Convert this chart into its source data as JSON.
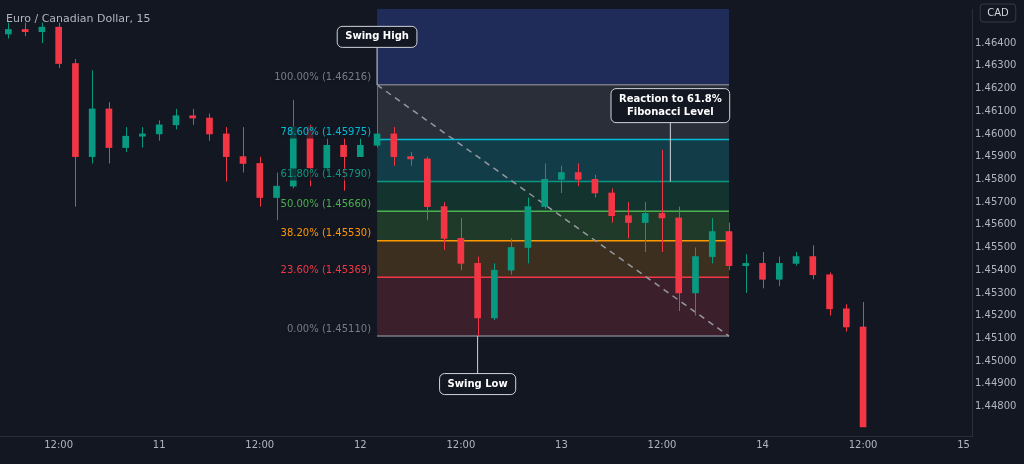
{
  "chart_data": {
    "type": "candlestick",
    "title": "Euro / Canadian Dollar, 15",
    "ylabel": "CAD",
    "categories": [
      null,
      null,
      null,
      "12:00",
      null,
      null,
      null,
      null,
      null,
      "11",
      null,
      null,
      null,
      null,
      null,
      "12:00",
      null,
      null,
      null,
      null,
      null,
      "12",
      null,
      null,
      null,
      null,
      null,
      "12:00",
      null,
      null,
      null,
      null,
      null,
      "13",
      null,
      null,
      null,
      null,
      null,
      "12:00",
      null,
      null,
      null,
      null,
      null,
      "14",
      null,
      null,
      null,
      null,
      null,
      "12:00",
      null,
      null,
      null,
      null,
      null,
      "15"
    ],
    "ohlc": [
      [
        1.4644,
        1.4649,
        1.4642,
        1.4646
      ],
      [
        1.4646,
        1.4649,
        1.4643,
        1.4645
      ],
      [
        1.4645,
        1.4649,
        1.464,
        1.4647
      ],
      [
        1.4647,
        1.4649,
        1.4629,
        1.4631
      ],
      [
        1.4631,
        1.4633,
        1.4568,
        1.459
      ],
      [
        1.459,
        1.4628,
        1.4587,
        1.4611
      ],
      [
        1.4611,
        1.4614,
        1.4587,
        1.4594
      ],
      [
        1.4594,
        1.4603,
        1.4592,
        1.4599
      ],
      [
        1.4599,
        1.4603,
        1.4594,
        1.46
      ],
      [
        1.46,
        1.4606,
        1.4597,
        1.4604
      ],
      [
        1.4604,
        1.4611,
        1.4602,
        1.4608
      ],
      [
        1.4608,
        1.4611,
        1.4604,
        1.4607
      ],
      [
        1.4607,
        1.4609,
        1.4597,
        1.46
      ],
      [
        1.46,
        1.4603,
        1.4579,
        1.459
      ],
      [
        1.459,
        1.4603,
        1.4583,
        1.4587
      ],
      [
        1.4587,
        1.459,
        1.4568,
        1.4572
      ],
      [
        1.4572,
        1.4583,
        1.4562,
        1.4577
      ],
      [
        1.4577,
        1.4615,
        1.4576,
        1.4603
      ],
      [
        1.4603,
        1.4604,
        1.4577,
        1.4585
      ],
      [
        1.4585,
        1.4598,
        1.4583,
        1.4595
      ],
      [
        1.4595,
        1.4598,
        1.4575,
        1.459
      ],
      [
        1.459,
        1.4598,
        1.459,
        1.4595
      ],
      [
        1.4595,
        1.46216,
        1.4594,
        1.46
      ],
      [
        1.46,
        1.4603,
        1.4586,
        1.459
      ],
      [
        1.459,
        1.4592,
        1.4586,
        1.4589
      ],
      [
        1.4589,
        1.459,
        1.4562,
        1.4568
      ],
      [
        1.4568,
        1.457,
        1.4549,
        1.4554
      ],
      [
        1.4554,
        1.4563,
        1.454,
        1.4543
      ],
      [
        1.4543,
        1.4546,
        1.4511,
        1.4519
      ],
      [
        1.4519,
        1.4543,
        1.4518,
        1.454
      ],
      [
        1.454,
        1.4554,
        1.4538,
        1.455
      ],
      [
        1.455,
        1.4572,
        1.4543,
        1.4568
      ],
      [
        1.4568,
        1.4587,
        1.4567,
        1.458
      ],
      [
        1.458,
        1.4586,
        1.4574,
        1.4583
      ],
      [
        1.4583,
        1.4587,
        1.4577,
        1.458
      ],
      [
        1.458,
        1.4582,
        1.4572,
        1.4574
      ],
      [
        1.4574,
        1.4576,
        1.4561,
        1.4564
      ],
      [
        1.4564,
        1.457,
        1.4554,
        1.4561
      ],
      [
        1.4561,
        1.457,
        1.4548,
        1.4565
      ],
      [
        1.4565,
        1.4593,
        1.4548,
        1.4563
      ],
      [
        1.4563,
        1.4568,
        1.4522,
        1.453
      ],
      [
        1.453,
        1.455,
        1.452,
        1.4546
      ],
      [
        1.4546,
        1.4563,
        1.4543,
        1.4557
      ],
      [
        1.4557,
        1.4561,
        1.454,
        1.4542
      ],
      [
        1.4542,
        1.4547,
        1.453,
        1.4543
      ],
      [
        1.4543,
        1.4548,
        1.4532,
        1.4536
      ],
      [
        1.4536,
        1.4546,
        1.4533,
        1.4543
      ],
      [
        1.4543,
        1.4548,
        1.4542,
        1.4546
      ],
      [
        1.4546,
        1.4551,
        1.4536,
        1.4538
      ],
      [
        1.4538,
        1.4539,
        1.452,
        1.4523
      ],
      [
        1.4523,
        1.4525,
        1.4513,
        1.4515
      ],
      [
        1.4515,
        1.4526,
        1.4471,
        1.4471
      ],
      null,
      null,
      null,
      null,
      null,
      null
    ],
    "colors": [
      "#089981",
      "#f23645",
      "#089981",
      "#f23645",
      "#f23645",
      "#089981",
      "#f23645",
      "#089981",
      "#089981",
      "#089981",
      "#089981",
      "#f23645",
      "#f23645",
      "#f23645",
      "#f23645",
      "#f23645",
      "#089981",
      "#089981",
      "#f23645",
      "#089981",
      "#f23645",
      "#089981",
      "#089981",
      "#f23645",
      "#f23645",
      "#f23645",
      "#f23645",
      "#f23645",
      "#f23645",
      "#089981",
      "#089981",
      "#089981",
      "#089981",
      "#089981",
      "#f23645",
      "#f23645",
      "#f23645",
      "#f23645",
      "#089981",
      "#f23645",
      "#f23645",
      "#089981",
      "#089981",
      "#f23645",
      "#089981",
      "#f23645",
      "#089981",
      "#089981",
      "#f23645",
      "#f23645",
      "#f23645",
      "#f23645",
      null,
      null,
      null,
      null,
      null,
      null
    ],
    "series": [
      {
        "type": "line",
        "color": "#9598a1",
        "line_style": "dashed",
        "values": [
          null,
          null,
          null,
          null,
          null,
          null,
          null,
          null,
          null,
          null,
          null,
          null,
          null,
          null,
          null,
          null,
          null,
          null,
          null,
          null,
          null,
          null,
          1.46216,
          null,
          null,
          null,
          null,
          null,
          null,
          null,
          null,
          null,
          null,
          null,
          null,
          null,
          null,
          null,
          null,
          null,
          null,
          null,
          null,
          1.4511,
          null,
          null,
          null,
          null,
          null,
          null,
          null,
          null,
          null,
          null,
          null,
          null,
          null,
          null
        ]
      },
      {
        "type": "line",
        "name": "100.00% (1.46216)",
        "color": "#787b86",
        "values": [
          null,
          null,
          null,
          null,
          null,
          null,
          null,
          null,
          null,
          null,
          null,
          null,
          null,
          null,
          null,
          null,
          null,
          null,
          null,
          null,
          null,
          null,
          1.46216,
          1.46216,
          1.46216,
          1.46216,
          1.46216,
          1.46216,
          1.46216,
          1.46216,
          1.46216,
          1.46216,
          1.46216,
          1.46216,
          1.46216,
          1.46216,
          1.46216,
          1.46216,
          1.46216,
          1.46216,
          1.46216,
          1.46216,
          1.46216,
          1.46216,
          null,
          null,
          null,
          null,
          null,
          null,
          null,
          null,
          null,
          null,
          null,
          null,
          null,
          null
        ]
      },
      {
        "type": "line",
        "name": "78.60% (1.45975)",
        "color": "#00bcd4",
        "values": [
          null,
          null,
          null,
          null,
          null,
          null,
          null,
          null,
          null,
          null,
          null,
          null,
          null,
          null,
          null,
          null,
          null,
          null,
          null,
          null,
          null,
          null,
          1.45975,
          1.45975,
          1.45975,
          1.45975,
          1.45975,
          1.45975,
          1.45975,
          1.45975,
          1.45975,
          1.45975,
          1.45975,
          1.45975,
          1.45975,
          1.45975,
          1.45975,
          1.45975,
          1.45975,
          1.45975,
          1.45975,
          1.45975,
          1.45975,
          1.45975,
          null,
          null,
          null,
          null,
          null,
          null,
          null,
          null,
          null,
          null,
          null,
          null,
          null,
          null
        ]
      },
      {
        "type": "line",
        "name": "61.80% (1.45790)",
        "color": "#089981",
        "values": [
          null,
          null,
          null,
          null,
          null,
          null,
          null,
          null,
          null,
          null,
          null,
          null,
          null,
          null,
          null,
          null,
          null,
          null,
          null,
          null,
          null,
          null,
          1.4579,
          1.4579,
          1.4579,
          1.4579,
          1.4579,
          1.4579,
          1.4579,
          1.4579,
          1.4579,
          1.4579,
          1.4579,
          1.4579,
          1.4579,
          1.4579,
          1.4579,
          1.4579,
          1.4579,
          1.4579,
          1.4579,
          1.4579,
          1.4579,
          1.4579,
          null,
          null,
          null,
          null,
          null,
          null,
          null,
          null,
          null,
          null,
          null,
          null,
          null,
          null
        ]
      },
      {
        "type": "line",
        "name": "50.00% (1.45660)",
        "color": "#4caf50",
        "values": [
          null,
          null,
          null,
          null,
          null,
          null,
          null,
          null,
          null,
          null,
          null,
          null,
          null,
          null,
          null,
          null,
          null,
          null,
          null,
          null,
          null,
          null,
          1.4566,
          1.4566,
          1.4566,
          1.4566,
          1.4566,
          1.4566,
          1.4566,
          1.4566,
          1.4566,
          1.4566,
          1.4566,
          1.4566,
          1.4566,
          1.4566,
          1.4566,
          1.4566,
          1.4566,
          1.4566,
          1.4566,
          1.4566,
          1.4566,
          1.4566,
          null,
          null,
          null,
          null,
          null,
          null,
          null,
          null,
          null,
          null,
          null,
          null,
          null,
          null
        ]
      },
      {
        "type": "line",
        "name": "38.20% (1.45530)",
        "color": "#ff9800",
        "values": [
          null,
          null,
          null,
          null,
          null,
          null,
          null,
          null,
          null,
          null,
          null,
          null,
          null,
          null,
          null,
          null,
          null,
          null,
          null,
          null,
          null,
          null,
          1.4553,
          1.4553,
          1.4553,
          1.4553,
          1.4553,
          1.4553,
          1.4553,
          1.4553,
          1.4553,
          1.4553,
          1.4553,
          1.4553,
          1.4553,
          1.4553,
          1.4553,
          1.4553,
          1.4553,
          1.4553,
          1.4553,
          1.4553,
          1.4553,
          1.4553,
          null,
          null,
          null,
          null,
          null,
          null,
          null,
          null,
          null,
          null,
          null,
          null,
          null,
          null
        ]
      },
      {
        "type": "line",
        "name": "23.60% (1.45369)",
        "color": "#f23645",
        "values": [
          null,
          null,
          null,
          null,
          null,
          null,
          null,
          null,
          null,
          null,
          null,
          null,
          null,
          null,
          null,
          null,
          null,
          null,
          null,
          null,
          null,
          null,
          1.45369,
          1.45369,
          1.45369,
          1.45369,
          1.45369,
          1.45369,
          1.45369,
          1.45369,
          1.45369,
          1.45369,
          1.45369,
          1.45369,
          1.45369,
          1.45369,
          1.45369,
          1.45369,
          1.45369,
          1.45369,
          1.45369,
          1.45369,
          1.45369,
          1.45369,
          null,
          null,
          null,
          null,
          null,
          null,
          null,
          null,
          null,
          null,
          null,
          null,
          null,
          null
        ]
      },
      {
        "type": "line",
        "name": "0.00% (1.45110)",
        "color": "#787b86",
        "values": [
          null,
          null,
          null,
          null,
          null,
          null,
          null,
          null,
          null,
          null,
          null,
          null,
          null,
          null,
          null,
          null,
          null,
          null,
          null,
          null,
          null,
          null,
          1.4511,
          1.4511,
          1.4511,
          1.4511,
          1.4511,
          1.4511,
          1.4511,
          1.4511,
          1.4511,
          1.4511,
          1.4511,
          1.4511,
          1.4511,
          1.4511,
          1.4511,
          1.4511,
          1.4511,
          1.4511,
          1.4511,
          1.4511,
          1.4511,
          1.4511,
          null,
          null,
          null,
          null,
          null,
          null,
          null,
          null,
          null,
          null,
          null,
          null,
          null,
          null
        ]
      }
    ],
    "bands": [
      {
        "axis": "y",
        "from": 1.46216,
        "to": 1.4655,
        "color": "#1f2c59"
      },
      {
        "axis": "y",
        "from": 1.45975,
        "to": 1.46216,
        "color": "#2a2e39"
      },
      {
        "axis": "y",
        "from": 1.4579,
        "to": 1.45975,
        "color": "#123c48"
      },
      {
        "axis": "y",
        "from": 1.4566,
        "to": 1.4579,
        "color": "#13332f"
      },
      {
        "axis": "y",
        "from": 1.4553,
        "to": 1.4566,
        "color": "#1f3a28"
      },
      {
        "axis": "y",
        "from": 1.45369,
        "to": 1.4553,
        "color": "#3d2f1f"
      },
      {
        "axis": "y",
        "from": 1.4511,
        "to": 1.45369,
        "color": "#3b1f2b"
      }
    ],
    "annotations": [
      {
        "text": "Swing High",
        "y": 1.46216
      },
      {
        "text": "Swing Low",
        "y": 1.4511
      },
      {
        "text": "Reaction to 61.8% Fibonacci Level",
        "y": 1.4579
      }
    ],
    "ylim": [
      1.4467,
      1.4655
    ],
    "yticks": [
      {
        "value": 1.448,
        "label": "1.44800"
      },
      {
        "value": 1.449,
        "label": "1.44900"
      },
      {
        "value": 1.45,
        "label": "1.45000"
      },
      {
        "value": 1.451,
        "label": "1.45100"
      },
      {
        "value": 1.452,
        "label": "1.45200"
      },
      {
        "value": 1.453,
        "label": "1.45300"
      },
      {
        "value": 1.454,
        "label": "1.45400"
      },
      {
        "value": 1.455,
        "label": "1.45500"
      },
      {
        "value": 1.456,
        "label": "1.45600"
      },
      {
        "value": 1.457,
        "label": "1.45700"
      },
      {
        "value": 1.458,
        "label": "1.45800"
      },
      {
        "value": 1.459,
        "label": "1.45900"
      },
      {
        "value": 1.46,
        "label": "1.46000"
      },
      {
        "value": 1.461,
        "label": "1.46100"
      },
      {
        "value": 1.462,
        "label": "1.46200"
      },
      {
        "value": 1.463,
        "label": "1.46300"
      },
      {
        "value": 1.464,
        "label": "1.46400"
      }
    ],
    "grid": false,
    "legend": false,
    "marker": "none"
  }
}
